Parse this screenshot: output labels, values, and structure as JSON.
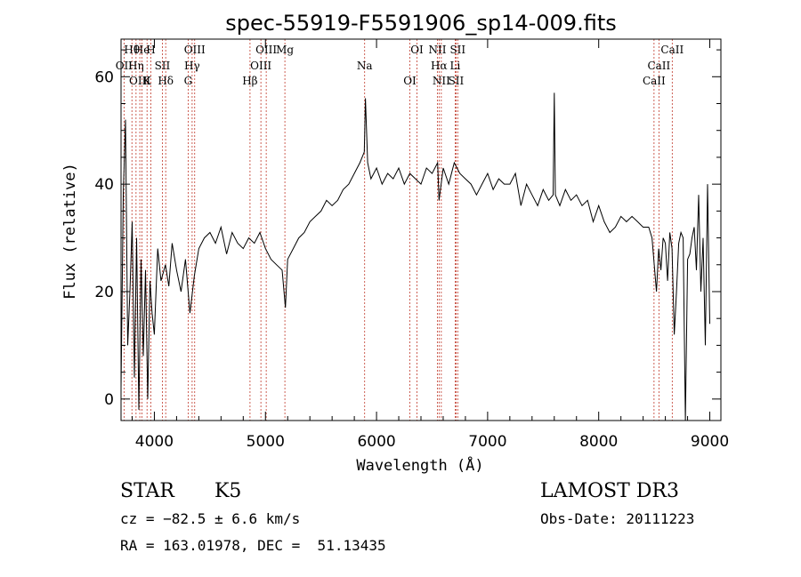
{
  "chart_data": {
    "type": "line",
    "title": "spec-55919-F5591906_sp14-009.fits",
    "xlabel": "Wavelength (Å)",
    "ylabel": "Flux (relative)",
    "xlim": [
      3700,
      9100
    ],
    "ylim": [
      -4,
      67
    ],
    "xticks": [
      4000,
      5000,
      6000,
      7000,
      8000,
      9000
    ],
    "yticks": [
      0,
      20,
      40,
      60
    ],
    "series": [
      {
        "name": "flux",
        "x": [
          3700,
          3720,
          3740,
          3760,
          3780,
          3800,
          3820,
          3840,
          3860,
          3880,
          3900,
          3920,
          3940,
          3960,
          3980,
          4000,
          4030,
          4060,
          4100,
          4130,
          4160,
          4200,
          4240,
          4280,
          4320,
          4360,
          4400,
          4450,
          4500,
          4550,
          4600,
          4650,
          4700,
          4750,
          4800,
          4850,
          4900,
          4950,
          5000,
          5050,
          5100,
          5150,
          5180,
          5200,
          5250,
          5300,
          5350,
          5400,
          5450,
          5500,
          5550,
          5600,
          5650,
          5700,
          5750,
          5800,
          5850,
          5890,
          5900,
          5920,
          5950,
          6000,
          6050,
          6100,
          6150,
          6200,
          6250,
          6300,
          6350,
          6400,
          6450,
          6500,
          6550,
          6563,
          6600,
          6650,
          6700,
          6750,
          6800,
          6850,
          6900,
          6950,
          7000,
          7050,
          7100,
          7150,
          7200,
          7250,
          7300,
          7350,
          7400,
          7450,
          7500,
          7550,
          7590,
          7600,
          7610,
          7650,
          7700,
          7750,
          7800,
          7850,
          7900,
          7950,
          8000,
          8050,
          8100,
          8150,
          8200,
          8250,
          8300,
          8350,
          8400,
          8450,
          8480,
          8500,
          8520,
          8540,
          8560,
          8580,
          8600,
          8620,
          8640,
          8660,
          8680,
          8700,
          8720,
          8740,
          8760,
          8780,
          8800,
          8820,
          8840,
          8860,
          8880,
          8900,
          8920,
          8940,
          8960,
          8980,
          9000
        ],
        "y": [
          2,
          38,
          52,
          10,
          20,
          33,
          4,
          30,
          -2,
          26,
          8,
          24,
          0,
          22,
          16,
          12,
          28,
          22,
          25,
          21,
          29,
          24,
          20,
          26,
          16,
          23,
          28,
          30,
          31,
          29,
          32,
          27,
          31,
          29,
          28,
          30,
          29,
          31,
          28,
          26,
          25,
          24,
          17,
          26,
          28,
          30,
          31,
          33,
          34,
          35,
          37,
          36,
          37,
          39,
          40,
          42,
          44,
          46,
          56,
          44,
          41,
          43,
          40,
          42,
          41,
          43,
          40,
          42,
          41,
          40,
          43,
          42,
          44,
          37,
          43,
          40,
          44,
          42,
          41,
          40,
          38,
          40,
          42,
          39,
          41,
          40,
          40,
          42,
          36,
          40,
          38,
          36,
          39,
          37,
          38,
          57,
          38,
          36,
          39,
          37,
          38,
          36,
          37,
          33,
          36,
          33,
          31,
          32,
          34,
          33,
          34,
          33,
          32,
          32,
          30,
          25,
          20,
          28,
          24,
          30,
          29,
          22,
          31,
          28,
          12,
          20,
          29,
          31,
          30,
          -4,
          26,
          27,
          30,
          32,
          24,
          38,
          20,
          30,
          10,
          40,
          14
        ],
        "color": "#000000"
      }
    ],
    "reference_lines": [
      {
        "label": "Hθ",
        "x": 3798
      },
      {
        "label": "OII",
        "x": 3727
      },
      {
        "label": "OIII",
        "x": 3869
      },
      {
        "label": "He",
        "x": 3889
      },
      {
        "label": "Hη",
        "x": 3835
      },
      {
        "label": "K",
        "x": 3934
      },
      {
        "label": "H",
        "x": 3968
      },
      {
        "label": "SII",
        "x": 4072
      },
      {
        "label": "Hδ",
        "x": 4102
      },
      {
        "label": "OIII",
        "x": 4363
      },
      {
        "label": "Hγ",
        "x": 4340
      },
      {
        "label": "G",
        "x": 4304
      },
      {
        "label": "OIII",
        "x": 5007
      },
      {
        "label": "OIII",
        "x": 4959
      },
      {
        "label": "Hβ",
        "x": 4861
      },
      {
        "label": "Mg",
        "x": 5175
      },
      {
        "label": "Na",
        "x": 5893
      },
      {
        "label": "OI",
        "x": 6300
      },
      {
        "label": "OI",
        "x": 6364
      },
      {
        "label": "Hα",
        "x": 6563
      },
      {
        "label": "SII",
        "x": 6716
      },
      {
        "label": "NII",
        "x": 6548
      },
      {
        "label": "Li",
        "x": 6708
      },
      {
        "label": "NII",
        "x": 6583
      },
      {
        "label": "SII",
        "x": 6731
      },
      {
        "label": "CaII",
        "x": 8542
      },
      {
        "label": "CaII",
        "x": 8498
      },
      {
        "label": "CaII",
        "x": 8662
      }
    ]
  },
  "info": {
    "object_type": "STAR",
    "subclass": "K5",
    "survey": "LAMOST DR3",
    "redshift_line": "cz = −82.5 ± 6.6 km/s",
    "obs_date": "Obs-Date: 20111223",
    "coords": "RA = 163.01978, DEC =  51.13435"
  }
}
